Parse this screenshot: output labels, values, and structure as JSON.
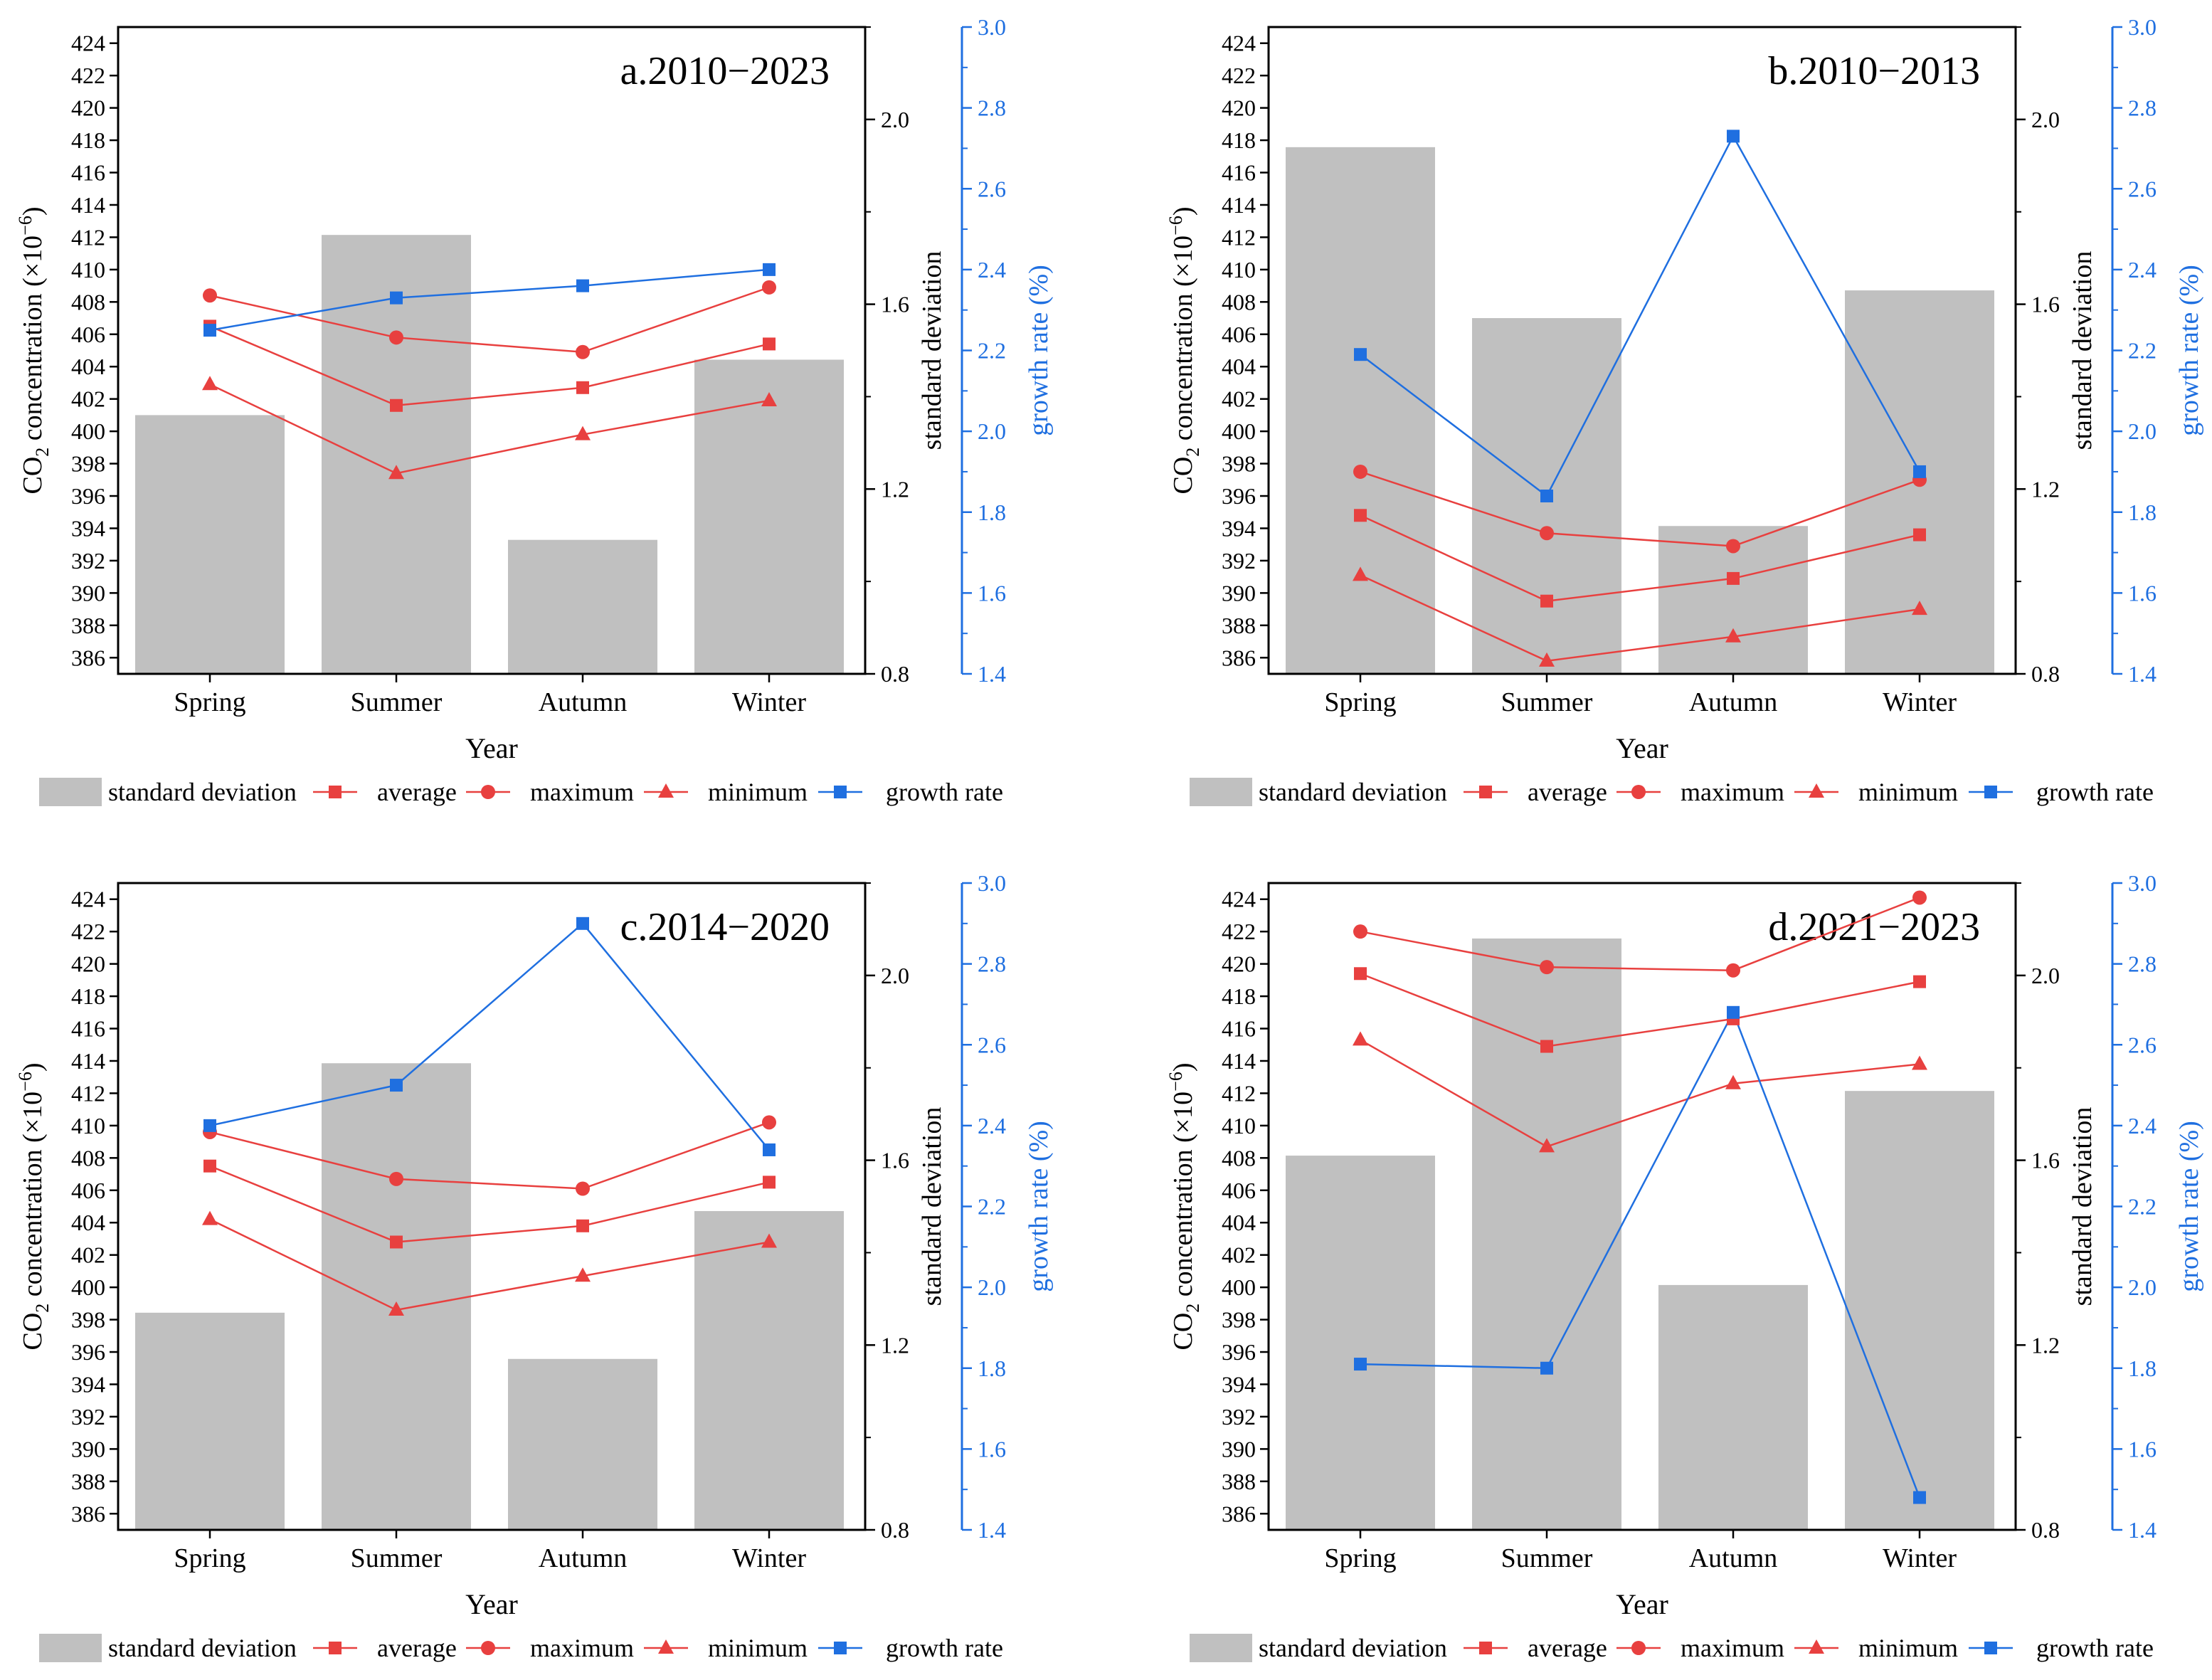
{
  "colors": {
    "bar": "#c0c0c0",
    "red": "#e8403f",
    "blue": "#1f6fe0",
    "axis": "#000000"
  },
  "legend": {
    "std": "standard deviation",
    "avg": "average",
    "max": "maximum",
    "min": "minimum",
    "growth": "growth rate"
  },
  "labels": {
    "xlabel": "Year",
    "ylabel_left_prefix": "CO",
    "ylabel_left_sub": "2",
    "ylabel_left_suffix": " concentration (×10",
    "ylabel_left_sup": "−6",
    "ylabel_left_end": ")",
    "ylabel_std": "standard deviation",
    "ylabel_growth": "growth rate (%)"
  },
  "chart_data": [
    {
      "type": "bar+line",
      "title": "a.2010−2023",
      "categories": [
        "Spring",
        "Summer",
        "Autumn",
        "Winter"
      ],
      "ylim_left": [
        385,
        425
      ],
      "ylim_std": [
        0.8,
        2.2
      ],
      "ylim_growth": [
        1.4,
        3.0
      ],
      "std": [
        1.36,
        1.75,
        1.09,
        1.48
      ],
      "average": [
        406.5,
        401.6,
        402.7,
        405.4
      ],
      "maximum": [
        408.4,
        405.8,
        404.9,
        408.9
      ],
      "minimum": [
        402.9,
        397.4,
        399.8,
        401.9
      ],
      "growth": [
        2.25,
        2.33,
        2.36,
        2.4
      ]
    },
    {
      "type": "bar+line",
      "title": "b.2010−2013",
      "categories": [
        "Spring",
        "Summer",
        "Autumn",
        "Winter"
      ],
      "ylim_left": [
        385,
        425
      ],
      "ylim_std": [
        0.8,
        2.2
      ],
      "ylim_growth": [
        1.4,
        3.0
      ],
      "std": [
        1.94,
        1.57,
        1.12,
        1.63
      ],
      "average": [
        394.8,
        389.5,
        390.9,
        393.6
      ],
      "maximum": [
        397.5,
        393.7,
        392.9,
        397.0
      ],
      "minimum": [
        391.1,
        385.8,
        387.3,
        389.0
      ],
      "growth": [
        2.19,
        1.84,
        2.73,
        1.9
      ]
    },
    {
      "type": "bar+line",
      "title": "c.2014−2020",
      "categories": [
        "Spring",
        "Summer",
        "Autumn",
        "Winter"
      ],
      "ylim_left": [
        385,
        425
      ],
      "ylim_std": [
        0.8,
        2.2
      ],
      "ylim_growth": [
        1.4,
        3.0
      ],
      "std": [
        1.27,
        1.81,
        1.17,
        1.49
      ],
      "average": [
        407.5,
        402.8,
        403.8,
        406.5
      ],
      "maximum": [
        409.6,
        406.7,
        406.1,
        410.2
      ],
      "minimum": [
        404.2,
        398.6,
        400.7,
        402.8
      ],
      "growth": [
        2.4,
        2.5,
        2.9,
        2.34
      ]
    },
    {
      "type": "bar+line",
      "title": "d.2021−2023",
      "categories": [
        "Spring",
        "Summer",
        "Autumn",
        "Winter"
      ],
      "ylim_left": [
        385,
        425
      ],
      "ylim_std": [
        0.8,
        2.2
      ],
      "ylim_growth": [
        1.4,
        3.0
      ],
      "std": [
        1.61,
        2.08,
        1.33,
        1.75
      ],
      "average": [
        419.4,
        414.9,
        416.6,
        418.9
      ],
      "maximum": [
        422.0,
        419.8,
        419.6,
        424.1
      ],
      "minimum": [
        415.3,
        408.7,
        412.6,
        413.8
      ],
      "growth": [
        1.81,
        1.8,
        2.68,
        1.48
      ]
    }
  ]
}
